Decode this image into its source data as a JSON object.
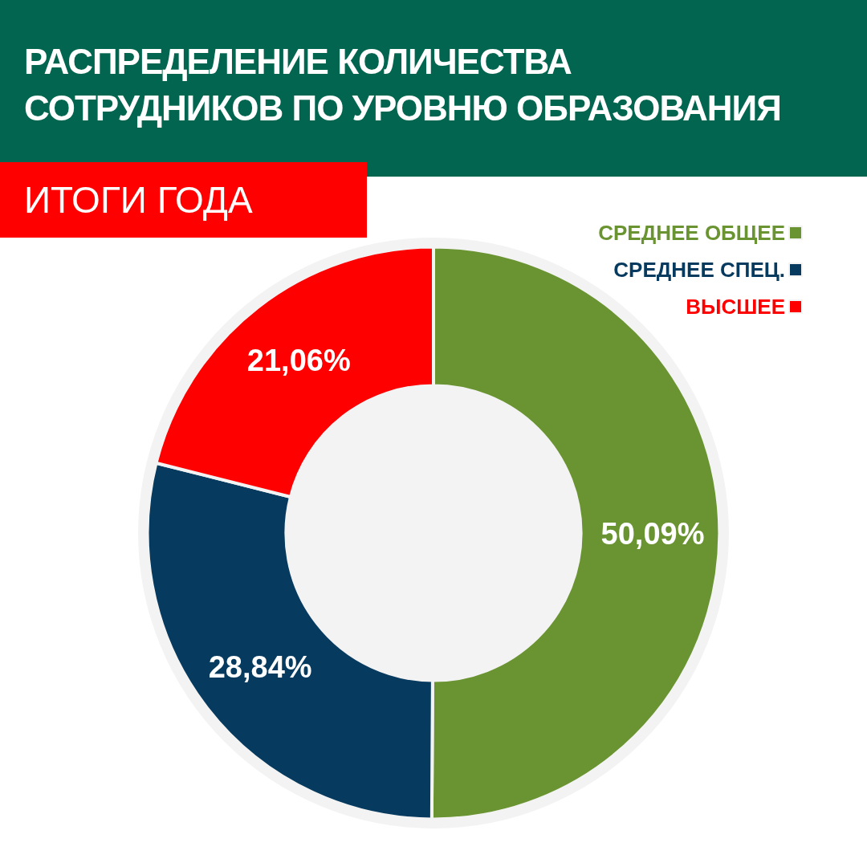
{
  "chart_data": {
    "type": "donut",
    "title": "РАСПРЕДЕЛЕНИЕ КОЛИЧЕСТВА СОТРУДНИКОВ ПО УРОВНЮ ОБРАЗОВАНИЯ",
    "subtitle": "ИТОГИ ГОДА",
    "categories": [
      "СРЕДНЕЕ ОБЩЕЕ",
      "СРЕДНЕЕ СПЕЦ.",
      "ВЫСШЕЕ"
    ],
    "values": [
      50.09,
      28.84,
      21.06
    ],
    "colors": [
      "#6a9431",
      "#063a5e",
      "#fe0000"
    ],
    "value_labels": [
      "50,09%",
      "28,84%",
      "21,06%"
    ],
    "legend": "top right"
  }
}
